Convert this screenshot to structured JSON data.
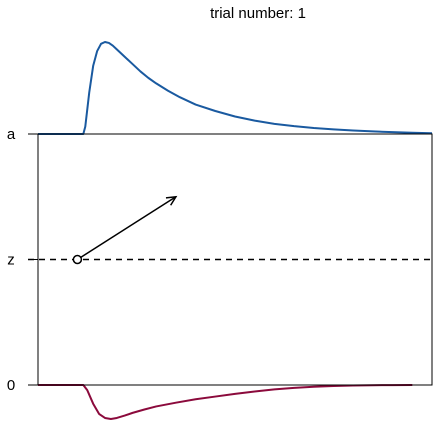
{
  "chart_data": {
    "type": "line",
    "title": "trial number: 1",
    "xlabel": "",
    "ylabel": "",
    "y_ticks": [
      {
        "label": "a",
        "value": 1.0
      },
      {
        "label": "z",
        "value": 0.5
      },
      {
        "label": "0",
        "value": 0.0
      }
    ],
    "xlim": [
      0,
      1
    ],
    "ylim": [
      0,
      1
    ],
    "starting_point": {
      "x": 0.1,
      "y": 0.5
    },
    "drift_arrow": {
      "x0": 0.1,
      "y0": 0.5,
      "x1": 0.35,
      "y1": 0.75
    },
    "series": [
      {
        "type": "density-upper",
        "color": "#1a5aa0",
        "x": [
          0.0,
          0.115,
          0.12,
          0.13,
          0.14,
          0.15,
          0.16,
          0.17,
          0.18,
          0.19,
          0.2,
          0.22,
          0.24,
          0.26,
          0.28,
          0.3,
          0.33,
          0.36,
          0.4,
          0.45,
          0.5,
          0.55,
          0.6,
          0.65,
          0.7,
          0.75,
          0.8,
          0.85,
          0.9,
          0.95,
          1.0
        ],
        "y": [
          0.0,
          0.0,
          0.08,
          0.45,
          0.74,
          0.9,
          0.98,
          1.0,
          0.99,
          0.96,
          0.92,
          0.84,
          0.76,
          0.68,
          0.61,
          0.55,
          0.47,
          0.4,
          0.32,
          0.25,
          0.19,
          0.145,
          0.11,
          0.085,
          0.065,
          0.05,
          0.038,
          0.028,
          0.02,
          0.013,
          0.008
        ]
      },
      {
        "type": "density-lower",
        "color": "#8b0a3c",
        "x": [
          0.0,
          0.115,
          0.125,
          0.14,
          0.155,
          0.17,
          0.185,
          0.2,
          0.22,
          0.24,
          0.27,
          0.3,
          0.35,
          0.4,
          0.45,
          0.5,
          0.55,
          0.6,
          0.65,
          0.7,
          0.75,
          0.8,
          0.85,
          0.9,
          0.95
        ],
        "y": [
          0.0,
          0.0,
          0.15,
          0.55,
          0.85,
          0.97,
          1.0,
          0.97,
          0.9,
          0.82,
          0.72,
          0.63,
          0.52,
          0.42,
          0.34,
          0.26,
          0.19,
          0.13,
          0.085,
          0.05,
          0.028,
          0.015,
          0.007,
          0.003,
          0.0
        ]
      }
    ]
  }
}
